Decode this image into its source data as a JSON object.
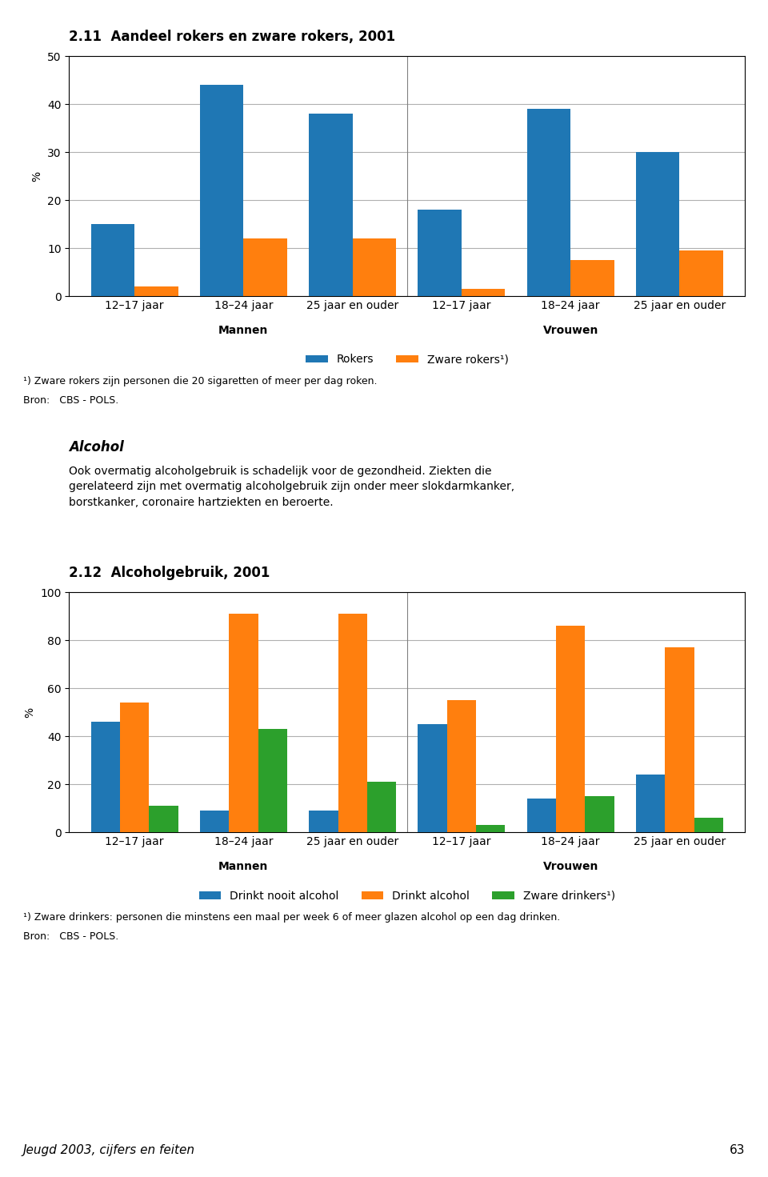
{
  "chart_data": [
    {
      "type": "bar",
      "title": "2.11  Aandeel rokers en zware rokers, 2001",
      "ylabel": "%",
      "categories": [
        "12–17 jaar",
        "18–24 jaar",
        "25 jaar en ouder",
        "12–17 jaar",
        "18–24 jaar",
        "25 jaar en ouder"
      ],
      "series": [
        {
          "name": "Rokers",
          "values": [
            15,
            44,
            38,
            18,
            39,
            30
          ]
        },
        {
          "name": "Zware rokers¹)",
          "values": [
            2,
            12,
            12,
            1.5,
            7.5,
            9.5
          ]
        }
      ],
      "ylim": [
        0,
        50
      ],
      "yticks": [
        0,
        10,
        20,
        30,
        40,
        50
      ],
      "grid": true,
      "annotations": [
        "Mannen",
        "Vrouwen",
        "¹) Zware rokers zijn personen die 20 sigaretten of meer per dag roken.",
        "Bron:   CBS - POLS."
      ]
    },
    {
      "type": "bar",
      "title": "2.12  Alcoholgebruik, 2001",
      "ylabel": "%",
      "categories": [
        "12–17 jaar",
        "18–24 jaar",
        "25 jaar en ouder",
        "12–17 jaar",
        "18–24 jaar",
        "25 jaar en ouder"
      ],
      "series": [
        {
          "name": "Drinkt nooit alcohol",
          "values": [
            46,
            9,
            9,
            45,
            14,
            24
          ]
        },
        {
          "name": "Drinkt alcohol",
          "values": [
            54,
            91,
            91,
            55,
            86,
            77
          ]
        },
        {
          "name": "Zware drinkers¹)",
          "values": [
            11,
            43,
            21,
            3,
            15,
            6
          ]
        }
      ],
      "ylim": [
        0,
        100
      ],
      "yticks": [
        0,
        20,
        40,
        60,
        80,
        100
      ],
      "grid": true,
      "annotations": [
        "Mannen",
        "Vrouwen",
        "¹) Zware drinkers: personen die minstens een maal per week 6 of meer glazen alcohol op een dag drinken.",
        "Bron:   CBS - POLS."
      ]
    }
  ],
  "annotations": [
    "Alcohol",
    "Ook overmatig alcoholgebruik is schadelijk voor de gezondheid. Ziekten die\ngerelateerd zijn met overmatig alcoholgebruik zijn onder meer slokdarmkanker,\nborstkanker, coronaire hartziekten en beroerte.",
    "Jeugd 2003, cijfers en feiten",
    "63"
  ]
}
